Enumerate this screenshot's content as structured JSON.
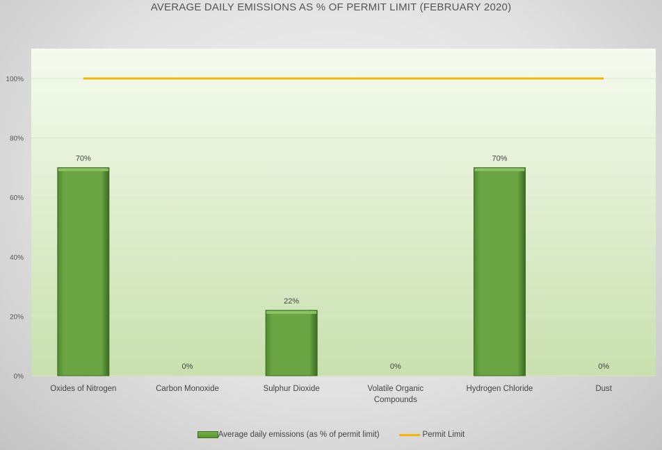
{
  "chart_data": {
    "type": "bar",
    "title": "AVERAGE DAILY EMISSIONS AS % OF PERMIT LIMIT (FEBRUARY 2020)",
    "categories": [
      "Oxides of Nitrogen",
      "Carbon Monoxide",
      "Sulphur Dioxide",
      "Volatile Organic Compounds",
      "Hydrogen Chloride",
      "Dust"
    ],
    "category_lines": [
      [
        "Oxides of Nitrogen"
      ],
      [
        "Carbon Monoxide"
      ],
      [
        "Sulphur Dioxide"
      ],
      [
        "Volatile Organic",
        "Compounds"
      ],
      [
        "Hydrogen Chloride"
      ],
      [
        "Dust"
      ]
    ],
    "series": [
      {
        "name": "Average daily emissions (as % of permit limit)",
        "type": "bar",
        "values": [
          70,
          0,
          22,
          0,
          70,
          0
        ],
        "labels": [
          "70%",
          "0%",
          "22%",
          "0%",
          "70%",
          "0%"
        ],
        "color": "#6aa443"
      },
      {
        "name": "Permit Limit",
        "type": "line",
        "values": [
          100,
          100,
          100,
          100,
          100,
          100
        ],
        "color": "#f5b400"
      }
    ],
    "yticks": [
      "0%",
      "20%",
      "40%",
      "60%",
      "80%",
      "100%"
    ],
    "ylim": [
      0,
      100
    ],
    "grid": true,
    "legend": "bottom"
  }
}
